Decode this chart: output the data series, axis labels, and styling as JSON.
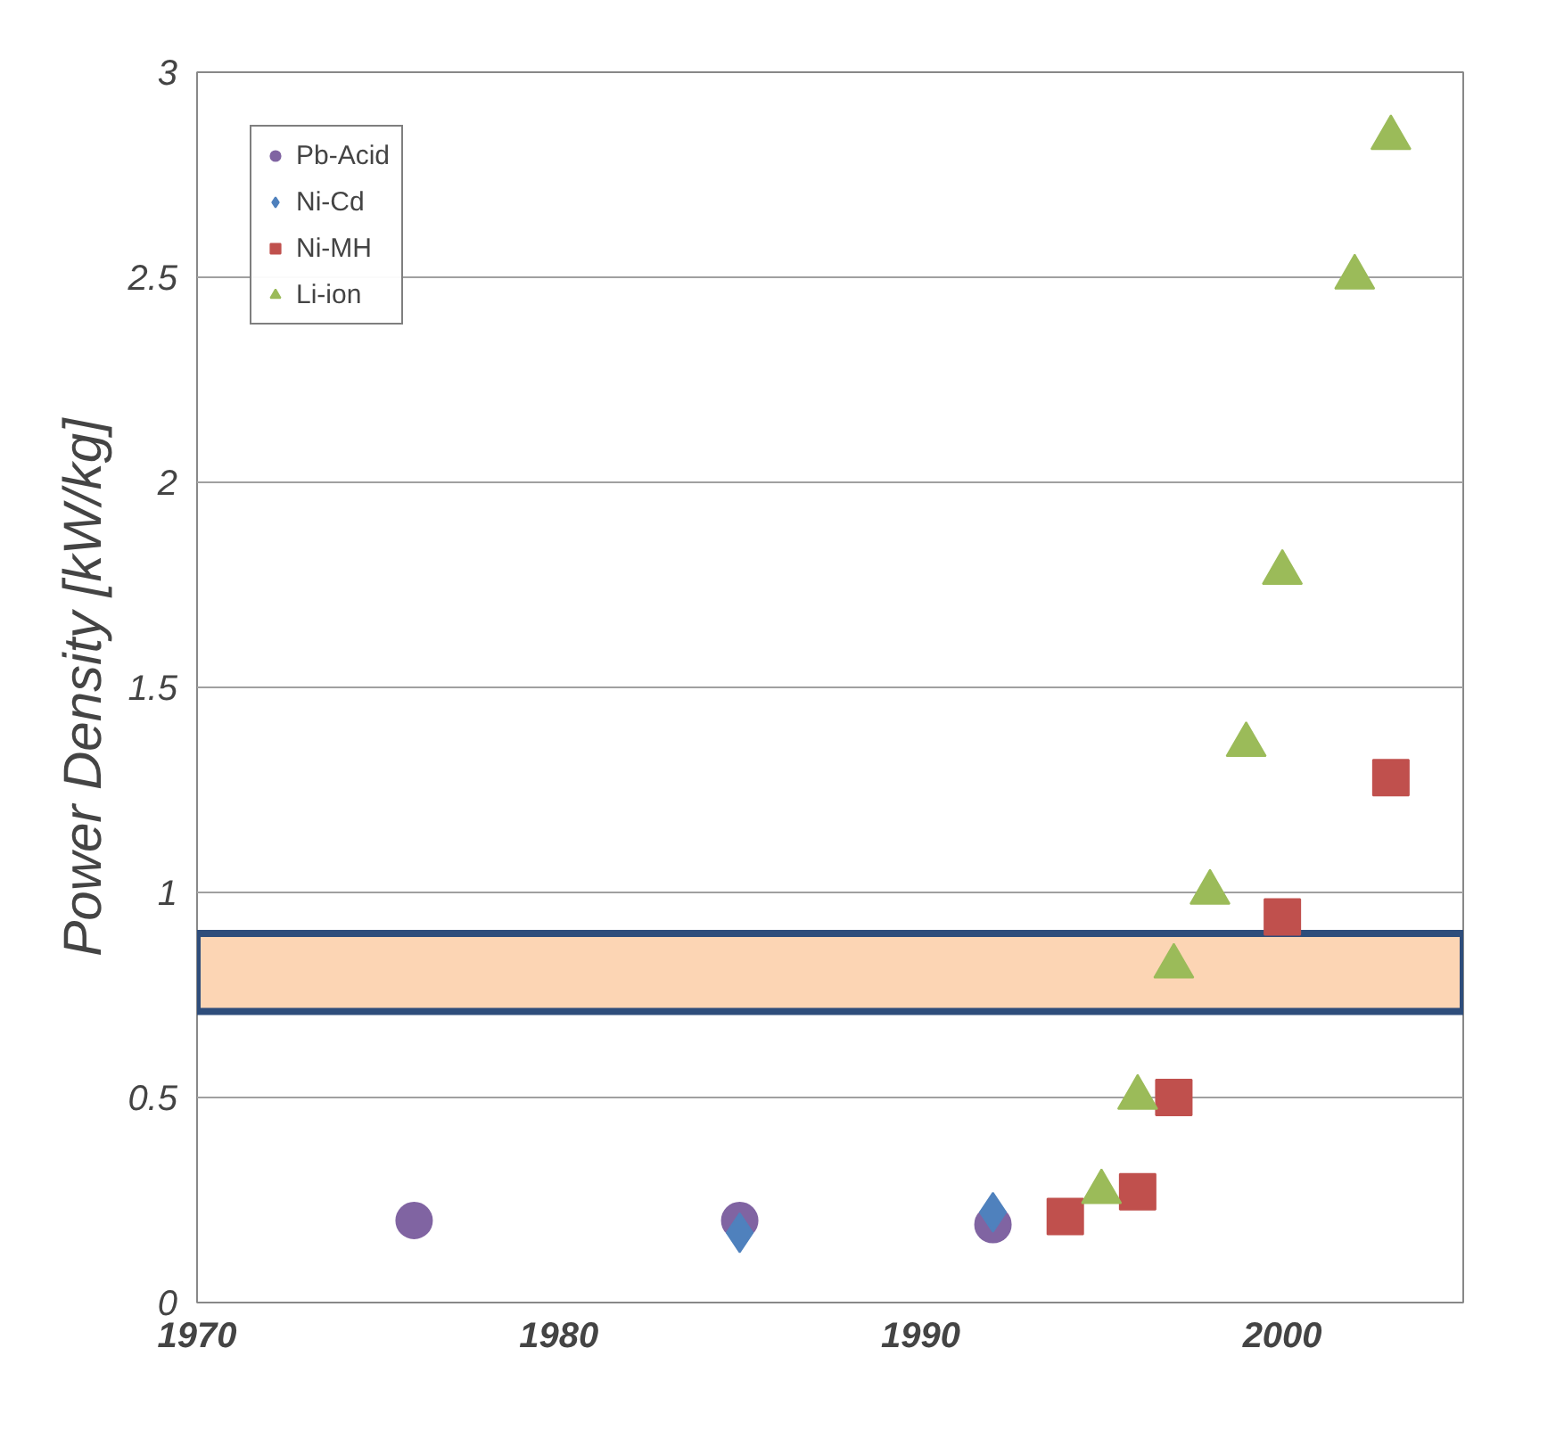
{
  "chart_data": {
    "type": "scatter",
    "ylabel": "Power Density [kW/kg]",
    "xlim": [
      1970,
      2005
    ],
    "xticks": [
      1970,
      1980,
      1990,
      2000
    ],
    "ylim": [
      0,
      3
    ],
    "yticks": [
      0,
      0.5,
      1,
      1.5,
      2,
      2.5,
      3
    ],
    "grid": "y",
    "legend": "top left",
    "series": [
      {
        "name": "Pb-Acid",
        "color": "#8064a2",
        "marker": "circle",
        "x": [
          1976,
          1985,
          1992
        ],
        "values": [
          0.2,
          0.2,
          0.19
        ]
      },
      {
        "name": "Ni-Cd",
        "color": "#4f81bd",
        "marker": "diamond",
        "x": [
          1985,
          1992
        ],
        "values": [
          0.17,
          0.22
        ]
      },
      {
        "name": "Ni-MH",
        "color": "#c0504d",
        "marker": "square",
        "x": [
          1994,
          1996,
          1997,
          2000,
          2003
        ],
        "values": [
          0.21,
          0.27,
          0.5,
          0.94,
          1.28
        ]
      },
      {
        "name": "Li-ion",
        "color": "#9bbb59",
        "marker": "triangle",
        "x": [
          1995,
          1996,
          1997,
          1998,
          1999,
          2000,
          2002,
          2003
        ],
        "values": [
          0.27,
          0.5,
          0.82,
          1.0,
          1.36,
          1.78,
          2.5,
          2.84
        ]
      }
    ],
    "bands": [
      {
        "axis": "y",
        "from": 0.71,
        "to": 0.9,
        "color": "#fcd5b4"
      }
    ]
  }
}
